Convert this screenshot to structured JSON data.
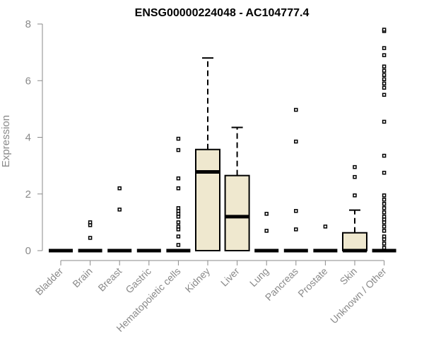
{
  "chart_data": {
    "type": "boxplot",
    "title": "ENSG00000224048 - AC104777.4",
    "xlabel": "",
    "ylabel": "Expression",
    "ylim": [
      0,
      8
    ],
    "yticks": [
      0,
      2,
      4,
      6,
      8
    ],
    "box_fill": "#efe8cf",
    "box_stroke": "#000000",
    "axis_color": "#8a8a8a",
    "categories": [
      "Bladder",
      "Brain",
      "Breast",
      "Gastric",
      "Hematopoietic cells",
      "Kidney",
      "Liver",
      "Lung",
      "Pancreas",
      "Prostate",
      "Skin",
      "Unknown / Other"
    ],
    "boxes": [
      {
        "category": "Bladder",
        "min": 0,
        "q1": 0,
        "median": 0,
        "q3": 0,
        "max": 0,
        "outliers": []
      },
      {
        "category": "Brain",
        "min": 0,
        "q1": 0,
        "median": 0,
        "q3": 0,
        "max": 0,
        "outliers": [
          0.45,
          0.9,
          1.0
        ]
      },
      {
        "category": "Breast",
        "min": 0,
        "q1": 0,
        "median": 0,
        "q3": 0,
        "max": 0,
        "outliers": [
          1.45,
          2.2
        ]
      },
      {
        "category": "Gastric",
        "min": 0,
        "q1": 0,
        "median": 0,
        "q3": 0,
        "max": 0,
        "outliers": []
      },
      {
        "category": "Hematopoietic cells",
        "min": 0,
        "q1": 0,
        "median": 0,
        "q3": 0,
        "max": 0,
        "outliers": [
          0.2,
          0.5,
          0.75,
          0.85,
          1.0,
          1.2,
          1.3,
          1.4,
          1.5,
          2.2,
          2.55,
          3.55,
          3.95
        ]
      },
      {
        "category": "Kidney",
        "min": 0,
        "q1": 0,
        "median": 2.78,
        "q3": 3.57,
        "max": 6.8,
        "outliers": []
      },
      {
        "category": "Liver",
        "min": 0,
        "q1": 0,
        "median": 1.2,
        "q3": 2.65,
        "max": 4.35,
        "outliers": []
      },
      {
        "category": "Lung",
        "min": 0,
        "q1": 0,
        "median": 0,
        "q3": 0,
        "max": 0,
        "outliers": [
          0.7,
          1.3
        ]
      },
      {
        "category": "Pancreas",
        "min": 0,
        "q1": 0,
        "median": 0,
        "q3": 0,
        "max": 0,
        "outliers": [
          0.75,
          1.4,
          3.85,
          4.97
        ]
      },
      {
        "category": "Prostate",
        "min": 0,
        "q1": 0,
        "median": 0,
        "q3": 0,
        "max": 0,
        "outliers": [
          0.85
        ]
      },
      {
        "category": "Skin",
        "min": 0,
        "q1": 0,
        "median": 0,
        "q3": 0.63,
        "max": 1.43,
        "outliers": [
          1.95,
          2.6,
          2.95
        ]
      },
      {
        "category": "Unknown / Other",
        "min": 0,
        "q1": 0,
        "median": 0,
        "q3": 0,
        "max": 0,
        "outliers": [
          0.1,
          0.25,
          0.4,
          0.5,
          0.7,
          0.85,
          1.0,
          1.1,
          1.2,
          1.35,
          1.5,
          1.65,
          1.8,
          1.95,
          2.75,
          3.35,
          4.55,
          5.5,
          5.75,
          5.9,
          6.05,
          6.2,
          6.35,
          6.5,
          6.9,
          7.15,
          7.75,
          7.8
        ]
      }
    ]
  }
}
